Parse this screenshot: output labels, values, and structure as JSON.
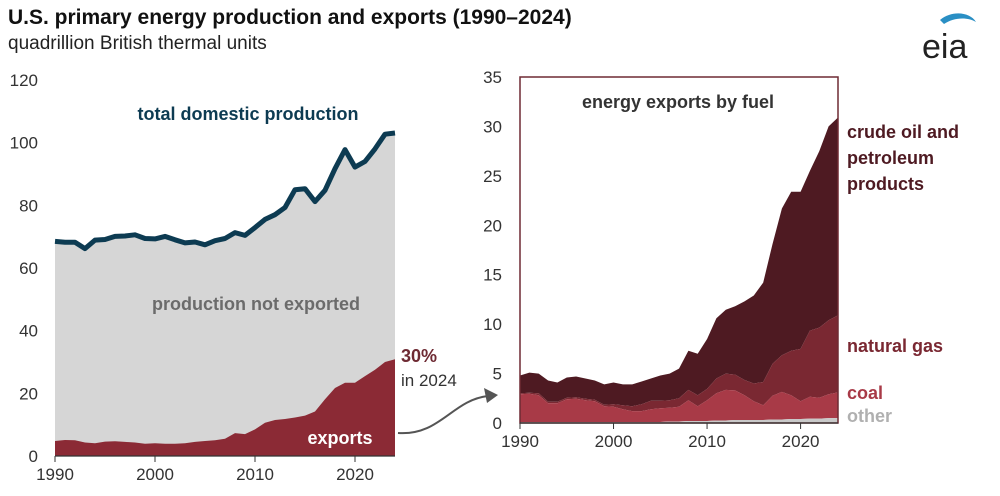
{
  "header": {
    "title": "U.S. primary energy production and exports (1990–2024)",
    "subtitle": "quadrillion British thermal units"
  },
  "logo": {
    "text": "eia",
    "swoosh_color": "#2a8fc4"
  },
  "colors": {
    "production_line": "#0d3b52",
    "production_area": "#d6d6d6",
    "exports_area": "#8b2a35",
    "crude": "#4e1a22",
    "natgas": "#7a2832",
    "coal": "#a83a47",
    "other": "#c9c9c9",
    "frame": "#6e2a33",
    "callout": "#6e2a33",
    "arrow": "#555555"
  },
  "chart_data": [
    {
      "type": "area",
      "name": "left",
      "xlim": [
        1990,
        2024
      ],
      "ylim": [
        0,
        120
      ],
      "xticks": [
        1990,
        2000,
        2010,
        2020
      ],
      "yticks": [
        0,
        20,
        40,
        60,
        80,
        100,
        120
      ],
      "x": [
        1990,
        1991,
        1992,
        1993,
        1994,
        1995,
        1996,
        1997,
        1998,
        1999,
        2000,
        2001,
        2002,
        2003,
        2004,
        2005,
        2006,
        2007,
        2008,
        2009,
        2010,
        2011,
        2012,
        2013,
        2014,
        2015,
        2016,
        2017,
        2018,
        2019,
        2020,
        2021,
        2022,
        2023,
        2024
      ],
      "series": [
        {
          "name": "total domestic production",
          "values": [
            68.5,
            68.2,
            68.2,
            66.2,
            68.9,
            69.1,
            70.1,
            70.2,
            70.6,
            69.4,
            69.3,
            70.1,
            69.0,
            68.0,
            68.3,
            67.4,
            68.7,
            69.4,
            71.3,
            70.4,
            72.9,
            75.5,
            77.0,
            79.3,
            85.0,
            85.3,
            81.2,
            84.8,
            91.7,
            97.8,
            92.2,
            94.0,
            98.0,
            102.7,
            103.1
          ]
        },
        {
          "name": "exports",
          "values": [
            4.8,
            5.1,
            5.0,
            4.3,
            4.1,
            4.6,
            4.7,
            4.5,
            4.3,
            3.9,
            4.1,
            3.9,
            3.9,
            4.1,
            4.5,
            4.8,
            5.0,
            5.5,
            7.3,
            7.0,
            8.5,
            10.6,
            11.5,
            11.8,
            12.3,
            12.9,
            14.2,
            18.1,
            21.7,
            23.4,
            23.4,
            25.5,
            27.5,
            30.0,
            30.9
          ]
        }
      ],
      "labels": {
        "production_line": "total domestic production",
        "production_area": "production not exported",
        "exports_area": "exports",
        "callout_value": "30%",
        "callout_note": "in 2024"
      }
    },
    {
      "type": "area",
      "name": "right",
      "title": "energy exports by fuel",
      "xlim": [
        1990,
        2024
      ],
      "ylim": [
        0,
        35
      ],
      "xticks": [
        1990,
        2000,
        2010,
        2020
      ],
      "yticks": [
        0,
        5,
        10,
        15,
        20,
        25,
        30,
        35
      ],
      "x": [
        1990,
        1991,
        1992,
        1993,
        1994,
        1995,
        1996,
        1997,
        1998,
        1999,
        2000,
        2001,
        2002,
        2003,
        2004,
        2005,
        2006,
        2007,
        2008,
        2009,
        2010,
        2011,
        2012,
        2013,
        2014,
        2015,
        2016,
        2017,
        2018,
        2019,
        2020,
        2021,
        2022,
        2023,
        2024
      ],
      "series": [
        {
          "name": "other",
          "values": [
            0.1,
            0.1,
            0.1,
            0.1,
            0.1,
            0.1,
            0.1,
            0.1,
            0.1,
            0.1,
            0.1,
            0.1,
            0.1,
            0.1,
            0.1,
            0.1,
            0.15,
            0.15,
            0.2,
            0.2,
            0.2,
            0.25,
            0.25,
            0.3,
            0.3,
            0.3,
            0.3,
            0.35,
            0.35,
            0.4,
            0.4,
            0.45,
            0.45,
            0.5,
            0.5
          ]
        },
        {
          "name": "coal",
          "values": [
            2.8,
            2.85,
            2.7,
            1.9,
            1.9,
            2.3,
            2.35,
            2.2,
            2.1,
            1.6,
            1.55,
            1.3,
            1.1,
            1.1,
            1.3,
            1.4,
            1.4,
            1.5,
            2.1,
            1.5,
            2.1,
            2.75,
            3.1,
            3.0,
            2.5,
            1.9,
            1.5,
            2.4,
            2.8,
            2.4,
            1.8,
            2.2,
            2.1,
            2.4,
            2.6
          ]
        },
        {
          "name": "natural gas",
          "values": [
            0.1,
            0.1,
            0.2,
            0.15,
            0.15,
            0.15,
            0.15,
            0.15,
            0.15,
            0.15,
            0.25,
            0.4,
            0.5,
            0.7,
            0.85,
            0.75,
            0.75,
            0.85,
            1.05,
            1.1,
            1.15,
            1.5,
            1.65,
            1.6,
            1.55,
            1.8,
            2.35,
            3.25,
            3.7,
            4.5,
            5.3,
            6.7,
            7.1,
            7.5,
            7.8
          ]
        },
        {
          "name": "crude oil and petroleum products",
          "values": [
            1.8,
            2.05,
            2.0,
            2.15,
            1.95,
            2.05,
            2.1,
            2.05,
            1.95,
            2.05,
            2.2,
            2.1,
            2.2,
            2.3,
            2.25,
            2.55,
            2.7,
            3.0,
            3.95,
            4.2,
            5.05,
            6.1,
            6.45,
            6.9,
            7.95,
            8.9,
            10.05,
            12.1,
            14.85,
            16.1,
            15.9,
            16.15,
            17.85,
            19.6,
            20.0
          ]
        }
      ],
      "labels": {
        "crude_line1": "crude oil and",
        "crude_line2": "petroleum",
        "crude_line3": "products",
        "natgas": "natural gas",
        "coal": "coal",
        "other": "other"
      }
    }
  ]
}
